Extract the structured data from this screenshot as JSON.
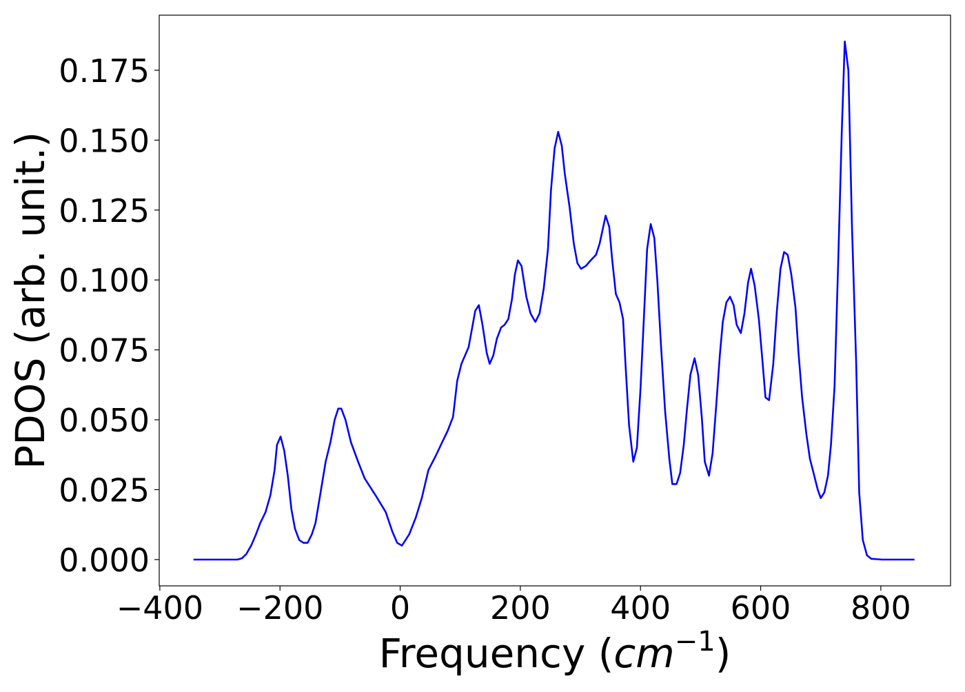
{
  "chart_data": {
    "type": "line",
    "xlabel_parts": [
      "Frequency (",
      "cm",
      "−1",
      ")"
    ],
    "ylabel": "PDOS (arb. unit.)",
    "xlim": [
      -401,
      916
    ],
    "ylim": [
      -0.0094,
      0.1947
    ],
    "xticks": [
      {
        "value": -400,
        "label": "−400"
      },
      {
        "value": -200,
        "label": "−200"
      },
      0,
      200,
      400,
      600,
      800
    ],
    "yticks": [
      {
        "value": 0,
        "label": "0.000"
      },
      {
        "value": 0.025,
        "label": "0.025"
      },
      {
        "value": 0.05,
        "label": "0.050"
      },
      {
        "value": 0.075,
        "label": "0.075"
      },
      {
        "value": 0.1,
        "label": "0.100"
      },
      {
        "value": 0.125,
        "label": "0.125"
      },
      {
        "value": 0.15,
        "label": "0.150"
      },
      {
        "value": 0.175,
        "label": "0.175"
      }
    ],
    "color": "#0000ff",
    "x": [
      -344,
      -271,
      -263,
      -256,
      -248,
      -240,
      -233,
      -224,
      -216,
      -209,
      -205,
      -199,
      -193,
      -187,
      -181,
      -175,
      -168,
      -161,
      -154,
      -147,
      -141,
      -134,
      -124,
      -116,
      -109,
      -103,
      -98,
      -91,
      -82,
      -70,
      -59,
      -41,
      -24,
      -13,
      -5,
      3,
      9,
      15,
      26,
      36,
      47,
      59,
      70,
      79,
      88,
      95,
      102,
      114,
      125,
      131,
      137,
      144,
      149,
      155,
      161,
      168,
      174,
      180,
      186,
      191,
      196,
      202,
      210,
      217,
      225,
      232,
      239,
      246,
      251,
      257,
      263,
      269,
      274,
      282,
      289,
      295,
      301,
      309,
      317,
      326,
      332,
      338,
      342,
      348,
      353,
      359,
      365,
      371,
      375,
      381,
      388,
      394,
      400,
      406,
      411,
      417,
      423,
      428,
      434,
      441,
      448,
      453,
      460,
      466,
      472,
      477,
      483,
      490,
      496,
      502,
      507,
      514,
      520,
      526,
      532,
      537,
      543,
      549,
      555,
      560,
      567,
      573,
      579,
      584,
      590,
      597,
      603,
      608,
      614,
      621,
      627,
      633,
      639,
      645,
      651,
      658,
      663,
      669,
      676,
      682,
      688,
      695,
      700,
      706,
      712,
      717,
      723,
      729,
      735,
      740,
      746,
      752,
      759,
      764,
      770,
      777,
      784,
      802,
      856
    ],
    "values": [
      0,
      0,
      0.0005,
      0.002,
      0.005,
      0.009,
      0.013,
      0.017,
      0.023,
      0.032,
      0.041,
      0.044,
      0.039,
      0.03,
      0.018,
      0.011,
      0.007,
      0.006,
      0.006,
      0.009,
      0.013,
      0.022,
      0.035,
      0.042,
      0.05,
      0.054,
      0.054,
      0.05,
      0.042,
      0.035,
      0.029,
      0.023,
      0.017,
      0.01,
      0.006,
      0.005,
      0.007,
      0.009,
      0.015,
      0.022,
      0.032,
      0.037,
      0.042,
      0.046,
      0.051,
      0.064,
      0.07,
      0.076,
      0.089,
      0.091,
      0.084,
      0.074,
      0.07,
      0.073,
      0.079,
      0.083,
      0.084,
      0.086,
      0.093,
      0.102,
      0.107,
      0.105,
      0.094,
      0.088,
      0.085,
      0.088,
      0.097,
      0.111,
      0.132,
      0.147,
      0.153,
      0.148,
      0.138,
      0.126,
      0.113,
      0.106,
      0.104,
      0.105,
      0.107,
      0.109,
      0.113,
      0.119,
      0.123,
      0.119,
      0.107,
      0.095,
      0.092,
      0.086,
      0.07,
      0.048,
      0.035,
      0.04,
      0.061,
      0.088,
      0.111,
      0.12,
      0.115,
      0.1,
      0.077,
      0.053,
      0.036,
      0.027,
      0.027,
      0.031,
      0.041,
      0.053,
      0.066,
      0.072,
      0.066,
      0.051,
      0.035,
      0.03,
      0.038,
      0.055,
      0.073,
      0.085,
      0.092,
      0.094,
      0.091,
      0.084,
      0.081,
      0.088,
      0.099,
      0.104,
      0.098,
      0.086,
      0.071,
      0.058,
      0.057,
      0.07,
      0.089,
      0.104,
      0.11,
      0.109,
      0.102,
      0.09,
      0.074,
      0.058,
      0.045,
      0.036,
      0.031,
      0.025,
      0.022,
      0.024,
      0.03,
      0.041,
      0.062,
      0.106,
      0.153,
      0.1853,
      0.175,
      0.119,
      0.07,
      0.024,
      0.007,
      0.0015,
      0.0003,
      0,
      0
    ]
  }
}
